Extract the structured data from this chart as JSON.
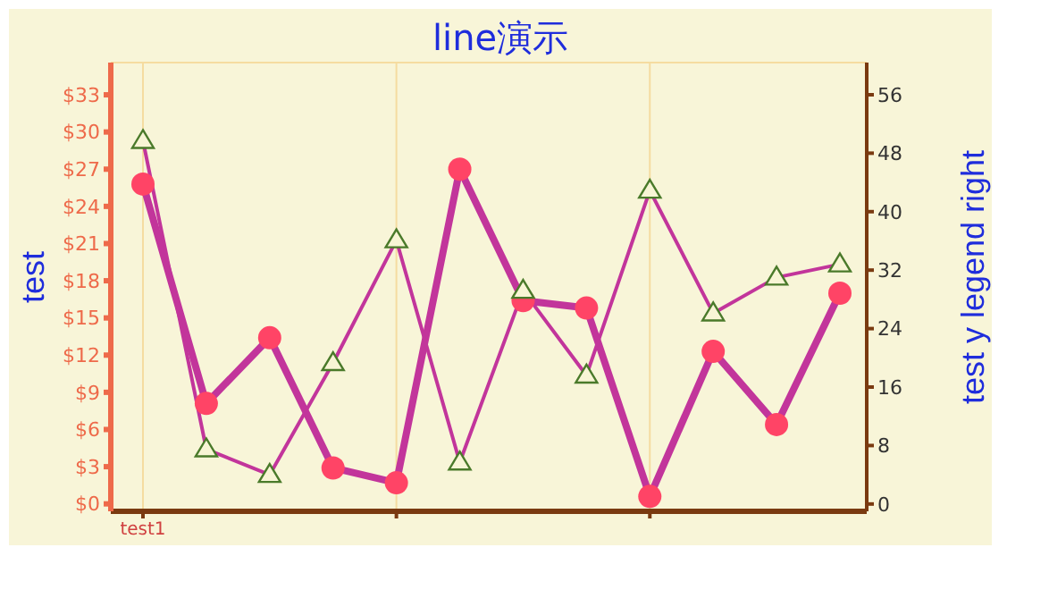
{
  "chart_data": {
    "type": "line",
    "title": "line演示",
    "ylabel": "test",
    "y2label": "test y legend right",
    "categories": [
      "test1",
      null,
      null,
      null,
      null,
      null,
      null,
      null,
      null,
      null,
      null,
      null
    ],
    "series": [
      {
        "type": "line",
        "color": "#c2359b",
        "marker": "circle",
        "values": [
          25.8,
          8.1,
          13.4,
          2.9,
          1.7,
          27.0,
          16.4,
          15.8,
          0.6,
          12.3,
          6.4,
          17.0
        ]
      },
      {
        "type": "line",
        "color": "#c2359b",
        "marker": "triangle",
        "axis": "y2",
        "values": [
          49.7,
          7.5,
          4.0,
          19.3,
          36.1,
          5.7,
          29.2,
          17.6,
          42.9,
          26.1,
          31.0,
          32.8
        ]
      }
    ],
    "ylim": [
      -0.6,
      35.6
    ],
    "yticks": [
      {
        "value": 0,
        "label": "$0"
      },
      {
        "value": 3,
        "label": "$3"
      },
      {
        "value": 6,
        "label": "$6"
      },
      {
        "value": 9,
        "label": "$9"
      },
      {
        "value": 12,
        "label": "$12"
      },
      {
        "value": 15,
        "label": "$15"
      },
      {
        "value": 18,
        "label": "$18"
      },
      {
        "value": 21,
        "label": "$21"
      },
      {
        "value": 24,
        "label": "$24"
      },
      {
        "value": 27,
        "label": "$27"
      },
      {
        "value": 30,
        "label": "$30"
      },
      {
        "value": 33,
        "label": "$33"
      }
    ],
    "y2lim": [
      -1,
      60.4
    ],
    "y2ticks": [
      0,
      8,
      16,
      24,
      32,
      40,
      48,
      56
    ],
    "grid": true,
    "legend": false
  }
}
